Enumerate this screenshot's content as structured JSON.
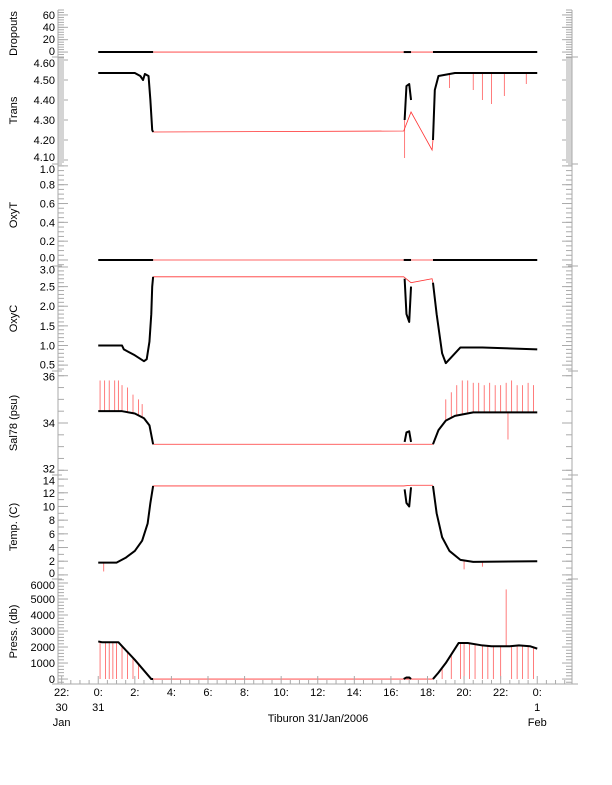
{
  "chart_data": {
    "type": "line",
    "title": "",
    "xlabel": "Tiburon 31/Jan/2006",
    "xlim_hours": [
      -2.2,
      25.9
    ],
    "x_ticks": [
      {
        "h": -2,
        "lines": [
          "22:",
          "30",
          "Jan"
        ]
      },
      {
        "h": 0,
        "lines": [
          "0:",
          "31"
        ]
      },
      {
        "h": 2,
        "lines": [
          "2:"
        ]
      },
      {
        "h": 4,
        "lines": [
          "4:"
        ]
      },
      {
        "h": 6,
        "lines": [
          "6:"
        ]
      },
      {
        "h": 8,
        "lines": [
          "8:"
        ]
      },
      {
        "h": 10,
        "lines": [
          "10:"
        ]
      },
      {
        "h": 12,
        "lines": [
          "12:"
        ]
      },
      {
        "h": 14,
        "lines": [
          "14:"
        ]
      },
      {
        "h": 16,
        "lines": [
          "16:"
        ]
      },
      {
        "h": 18,
        "lines": [
          "18:"
        ]
      },
      {
        "h": 20,
        "lines": [
          "20:"
        ]
      },
      {
        "h": 22,
        "lines": [
          "22:"
        ]
      },
      {
        "h": 24,
        "lines": [
          "0:",
          "1",
          "Feb"
        ]
      }
    ],
    "colors": {
      "measured": "#000000",
      "interpolated": "#ff3333",
      "axis": "#aaaaaa"
    },
    "panels": [
      {
        "name": "dropouts",
        "ylabel": "Dropouts",
        "ylim": [
          -8,
          68
        ],
        "ticks": [
          0,
          20,
          40,
          60
        ],
        "tick_labels": [
          "0",
          "20",
          "40",
          "60"
        ],
        "minor": 5,
        "black": [
          [
            [
              0,
              0
            ],
            [
              3,
              0
            ]
          ],
          [
            [
              16.7,
              0
            ],
            [
              17.1,
              0
            ]
          ],
          [
            [
              18.3,
              0
            ],
            [
              24,
              0
            ]
          ]
        ],
        "red": [
          [
            3,
            0
          ],
          [
            16.7,
            0
          ],
          [
            17.1,
            0
          ],
          [
            18.3,
            0
          ]
        ],
        "spikes": []
      },
      {
        "name": "trans",
        "ylabel": "Trans",
        "ylim": [
          4.08,
          4.615
        ],
        "ticks": [
          4.1,
          4.2,
          4.3,
          4.4,
          4.5,
          4.6
        ],
        "tick_labels": [
          "4.10",
          "4.20",
          "4.30",
          "4.40",
          "4.50",
          "4.60"
        ],
        "minor": 10,
        "black": [
          [
            [
              0,
              4.535
            ],
            [
              2.0,
              4.535
            ],
            [
              2.3,
              4.52
            ],
            [
              2.45,
              4.5
            ],
            [
              2.55,
              4.53
            ],
            [
              2.75,
              4.52
            ],
            [
              2.85,
              4.4
            ],
            [
              2.95,
              4.25
            ],
            [
              3.0,
              4.24
            ]
          ],
          [
            [
              16.75,
              4.3
            ],
            [
              16.85,
              4.47
            ],
            [
              17.0,
              4.48
            ],
            [
              17.1,
              4.4
            ]
          ],
          [
            [
              18.3,
              4.2
            ],
            [
              18.4,
              4.45
            ],
            [
              18.6,
              4.52
            ],
            [
              19.5,
              4.535
            ],
            [
              24,
              4.535
            ]
          ]
        ],
        "red": [
          [
            3.0,
            4.24
          ],
          [
            16.7,
            4.245
          ],
          [
            17.1,
            4.34
          ],
          [
            18.25,
            4.15
          ],
          [
            18.3,
            4.2
          ]
        ],
        "spikes": [
          [
            20.5,
            4.45
          ],
          [
            21.0,
            4.4
          ],
          [
            21.5,
            4.38
          ],
          [
            22.2,
            4.42
          ],
          [
            23.4,
            4.48
          ],
          [
            19.2,
            4.46
          ],
          [
            16.75,
            4.11
          ]
        ]
      },
      {
        "name": "oxyt",
        "ylabel": "OxyT",
        "ylim": [
          -0.064,
          1.02
        ],
        "ticks": [
          0.0,
          0.2,
          0.4,
          0.6,
          0.8,
          1.0
        ],
        "tick_labels": [
          "0.0",
          "0.2",
          "0.4",
          "0.6",
          "0.8",
          "1.0"
        ],
        "minor": 4,
        "black": [
          [
            [
              0,
              0
            ],
            [
              3,
              0
            ]
          ],
          [
            [
              16.7,
              0
            ],
            [
              17.1,
              0
            ]
          ],
          [
            [
              18.3,
              0
            ],
            [
              24,
              0
            ]
          ]
        ],
        "red": [
          [
            3,
            0
          ],
          [
            16.7,
            0
          ],
          [
            17.1,
            0
          ],
          [
            18.3,
            0
          ]
        ],
        "spikes": []
      },
      {
        "name": "oxyc",
        "ylabel": "OxyC",
        "ylim": [
          0.35,
          3.025
        ],
        "ticks": [
          0.5,
          1.0,
          1.5,
          2.0,
          2.5,
          3.0
        ],
        "tick_labels": [
          "0.5",
          "1.0",
          "1.5",
          "2.0",
          "2.5",
          "3.0"
        ],
        "minor": 5,
        "black": [
          [
            [
              0,
              1.0
            ],
            [
              1.3,
              1.0
            ],
            [
              1.4,
              0.9
            ],
            [
              2.0,
              0.75
            ],
            [
              2.5,
              0.6
            ],
            [
              2.65,
              0.65
            ],
            [
              2.8,
              1.1
            ],
            [
              2.9,
              1.8
            ],
            [
              2.95,
              2.5
            ],
            [
              3.0,
              2.75
            ]
          ],
          [
            [
              16.75,
              2.7
            ],
            [
              16.85,
              1.8
            ],
            [
              17.0,
              1.6
            ],
            [
              17.1,
              2.5
            ]
          ],
          [
            [
              18.3,
              2.6
            ],
            [
              18.5,
              1.8
            ],
            [
              18.8,
              0.8
            ],
            [
              19.0,
              0.55
            ],
            [
              19.3,
              0.7
            ],
            [
              19.8,
              0.95
            ],
            [
              21,
              0.95
            ],
            [
              24,
              0.9
            ]
          ]
        ],
        "red": [
          [
            3.0,
            2.75
          ],
          [
            16.7,
            2.75
          ],
          [
            17.1,
            2.6
          ],
          [
            18.25,
            2.7
          ],
          [
            18.3,
            2.6
          ]
        ],
        "spikes": []
      },
      {
        "name": "sal78",
        "ylabel": "Sal78 (psu)",
        "ylim": [
          31.8,
          36.2
        ],
        "ticks": [
          32,
          34,
          36
        ],
        "tick_labels": [
          "32",
          "34",
          "36"
        ],
        "minor": 4,
        "black": [
          [
            [
              0,
              34.5
            ],
            [
              1.3,
              34.5
            ],
            [
              2.0,
              34.4
            ],
            [
              2.5,
              34.2
            ],
            [
              2.8,
              33.9
            ],
            [
              2.95,
              33.3
            ],
            [
              3.0,
              33.1
            ]
          ],
          [
            [
              16.75,
              33.2
            ],
            [
              16.85,
              33.6
            ],
            [
              17.0,
              33.65
            ],
            [
              17.1,
              33.2
            ]
          ],
          [
            [
              18.3,
              33.1
            ],
            [
              18.6,
              33.7
            ],
            [
              19.0,
              34.1
            ],
            [
              19.5,
              34.3
            ],
            [
              20.5,
              34.45
            ],
            [
              24,
              34.45
            ]
          ]
        ],
        "red": [
          [
            3.0,
            33.1
          ],
          [
            16.7,
            33.1
          ],
          [
            17.1,
            33.1
          ],
          [
            18.3,
            33.1
          ]
        ],
        "spikes": [
          [
            0.1,
            35.8
          ],
          [
            0.35,
            35.8
          ],
          [
            0.6,
            35.8
          ],
          [
            0.9,
            35.8
          ],
          [
            1.1,
            35.8
          ],
          [
            1.3,
            35.6
          ],
          [
            1.6,
            35.5
          ],
          [
            1.9,
            35.2
          ],
          [
            2.2,
            35.0
          ],
          [
            2.4,
            34.8
          ],
          [
            19.0,
            35.0
          ],
          [
            19.3,
            35.3
          ],
          [
            19.6,
            35.6
          ],
          [
            19.9,
            35.8
          ],
          [
            20.2,
            35.8
          ],
          [
            20.5,
            35.7
          ],
          [
            20.8,
            35.7
          ],
          [
            21.1,
            35.6
          ],
          [
            21.4,
            35.7
          ],
          [
            21.7,
            35.6
          ],
          [
            22.0,
            35.6
          ],
          [
            22.3,
            35.7
          ],
          [
            22.6,
            35.8
          ],
          [
            22.9,
            35.6
          ],
          [
            23.2,
            35.6
          ],
          [
            23.5,
            35.7
          ],
          [
            23.8,
            35.6
          ],
          [
            22.4,
            33.3
          ]
        ]
      },
      {
        "name": "temp",
        "ylabel": "Temp. (C)",
        "ylim": [
          -0.6,
          14.6
        ],
        "ticks": [
          0,
          2,
          4,
          6,
          8,
          10,
          12,
          14
        ],
        "tick_labels": [
          "0",
          "2",
          "4",
          "6",
          "8",
          "10",
          "12",
          "14"
        ],
        "minor": 2,
        "black": [
          [
            [
              0,
              1.8
            ],
            [
              1.0,
              1.8
            ],
            [
              1.5,
              2.5
            ],
            [
              2.0,
              3.5
            ],
            [
              2.4,
              5.0
            ],
            [
              2.7,
              7.5
            ],
            [
              2.85,
              10.5
            ],
            [
              3.0,
              13.0
            ]
          ],
          [
            [
              16.75,
              12.5
            ],
            [
              16.85,
              10.5
            ],
            [
              17.0,
              10.0
            ],
            [
              17.1,
              12.8
            ]
          ],
          [
            [
              18.3,
              13.0
            ],
            [
              18.5,
              9.0
            ],
            [
              18.8,
              5.5
            ],
            [
              19.2,
              3.5
            ],
            [
              19.8,
              2.2
            ],
            [
              20.5,
              1.9
            ],
            [
              24,
              2.0
            ]
          ]
        ],
        "red": [
          [
            3.0,
            13.0
          ],
          [
            16.7,
            13.0
          ],
          [
            17.1,
            13.1
          ],
          [
            18.3,
            13.1
          ]
        ],
        "spikes": [
          [
            0.3,
            0.5
          ],
          [
            20.0,
            0.8
          ],
          [
            21.0,
            1.2
          ]
        ]
      },
      {
        "name": "press",
        "ylabel": "Press. (db)",
        "ylim": [
          -310,
          6250
        ],
        "ticks": [
          0,
          1000,
          2000,
          3000,
          4000,
          5000,
          6000
        ],
        "tick_labels": [
          "0",
          "1000",
          "2000",
          "3000",
          "4000",
          "5000",
          "6000"
        ],
        "minor": 5,
        "black": [
          [
            [
              0,
              2350
            ],
            [
              0.2,
              2300
            ],
            [
              1.1,
              2300
            ],
            [
              2.0,
              1200
            ],
            [
              2.9,
              0
            ],
            [
              3.0,
              0
            ]
          ],
          [
            [
              16.7,
              0
            ],
            [
              16.85,
              100
            ],
            [
              17.0,
              100
            ],
            [
              17.1,
              0
            ]
          ],
          [
            [
              18.3,
              0
            ],
            [
              18.6,
              400
            ],
            [
              19.0,
              1000
            ],
            [
              19.7,
              2250
            ],
            [
              20.2,
              2250
            ],
            [
              21.0,
              2100
            ],
            [
              21.5,
              2050
            ],
            [
              22.5,
              2050
            ],
            [
              23.0,
              2100
            ],
            [
              23.6,
              2050
            ],
            [
              24,
              1900
            ]
          ]
        ],
        "red": [
          [
            3.0,
            0
          ],
          [
            16.7,
            0
          ],
          [
            17.1,
            0
          ],
          [
            18.3,
            0
          ]
        ],
        "spikes": [
          [
            0.1,
            0
          ],
          [
            0.4,
            0
          ],
          [
            0.6,
            0
          ],
          [
            0.8,
            0
          ],
          [
            1.0,
            0
          ],
          [
            1.3,
            0
          ],
          [
            1.6,
            0
          ],
          [
            1.9,
            0
          ],
          [
            2.2,
            0
          ],
          [
            18.8,
            0
          ],
          [
            19.3,
            0
          ],
          [
            19.8,
            0
          ],
          [
            20.0,
            0
          ],
          [
            20.3,
            0
          ],
          [
            20.6,
            0
          ],
          [
            21.0,
            0
          ],
          [
            21.3,
            0
          ],
          [
            21.6,
            0
          ],
          [
            22.0,
            0
          ],
          [
            22.3,
            5600
          ],
          [
            22.6,
            0
          ],
          [
            22.9,
            0
          ],
          [
            23.2,
            0
          ],
          [
            23.5,
            0
          ],
          [
            23.8,
            0
          ]
        ]
      }
    ]
  }
}
